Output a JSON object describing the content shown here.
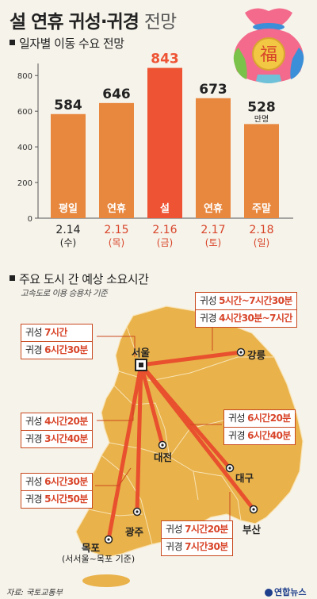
{
  "title": {
    "bold": "설 연휴 귀성·귀경",
    "light": "전망"
  },
  "section1": "일자별 이동 수요 전망",
  "bag_glyph": "福",
  "chart_data": {
    "type": "bar",
    "title": "일자별 이동 수요 전망",
    "unit": "만명",
    "ylim": [
      0,
      850
    ],
    "yticks": [
      0,
      200,
      400,
      600,
      800
    ],
    "categories": [
      "2.14 (수)",
      "2.15 (목)",
      "2.16 (금)",
      "2.17 (토)",
      "2.18 (일)"
    ],
    "dates": [
      "2.14",
      "2.15",
      "2.16",
      "2.17",
      "2.18"
    ],
    "weekdays": [
      "(수)",
      "(목)",
      "(금)",
      "(토)",
      "(일)"
    ],
    "values": [
      584,
      646,
      843,
      673,
      528
    ],
    "bar_labels": [
      "평일",
      "연휴",
      "설",
      "연휴",
      "주말"
    ],
    "date_colors": [
      "#222222",
      "#d8452a",
      "#d8452a",
      "#d8452a",
      "#d8452a"
    ],
    "bar_color": "#e8883f",
    "highlight_color": "#ee5434",
    "highlight_index": 2
  },
  "section2": "주요 도시 간 예상 소요시간",
  "note": "고속도로 이용 승용차 기준",
  "boxes": {
    "gangneung": {
      "l1": "귀성",
      "t1": "5시간~7시간30분",
      "l2": "귀경",
      "t2": "4시간30분~7시간"
    },
    "northwest": {
      "l1": "귀성",
      "t1": "7시간",
      "l2": "귀경",
      "t2": "6시간30분"
    },
    "daejeon": {
      "l1": "귀성",
      "t1": "4시간20분",
      "l2": "귀경",
      "t2": "3시간40분"
    },
    "daegu": {
      "l1": "귀성",
      "t1": "6시간20분",
      "l2": "귀경",
      "t2": "6시간40분"
    },
    "gwangju": {
      "l1": "귀성",
      "t1": "6시간30분",
      "l2": "귀경",
      "t2": "5시간50분"
    },
    "busan": {
      "l1": "귀성",
      "t1": "7시간20분",
      "l2": "귀경",
      "t2": "7시간30분"
    }
  },
  "cities": {
    "seoul": "서울",
    "gangneung": "강릉",
    "daejeon": "대전",
    "daegu": "대구",
    "gwangju": "광주",
    "busan": "부산",
    "mokpo": "목포",
    "mokpo_note": "(서서울~목포 기준)"
  },
  "source": "자료: 국토교통부",
  "logo": "연합뉴스",
  "colors": {
    "map": "#e9b24a",
    "route": "#e8502e",
    "accent": "#d8452a",
    "bg": "#f6f3ea"
  }
}
